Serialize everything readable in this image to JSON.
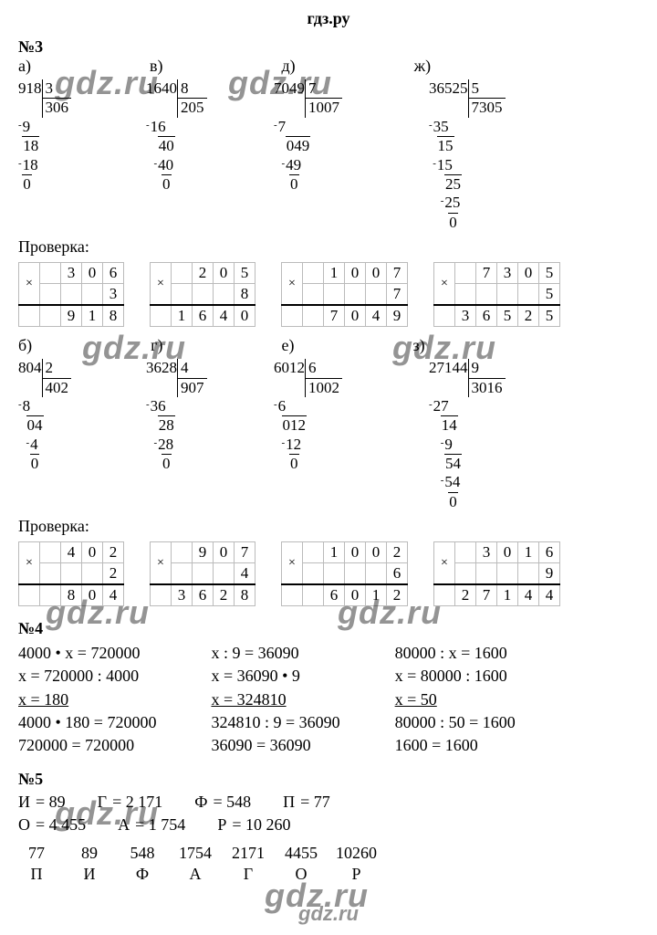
{
  "header": "гдз.ру",
  "watermarks": [
    "gdz.ru",
    "gdz.ru",
    "gdz.ru",
    "gdz.ru",
    "gdz.ru",
    "gdz.ru",
    "gdz.ru",
    "gdz.ru",
    "gdz.ru",
    "gdz.ru"
  ],
  "p3": {
    "title": "№3",
    "label_a": "а)",
    "label_v": "в)",
    "label_d": "д)",
    "label_zh": "ж)",
    "label_b": "б)",
    "label_g": "г)",
    "label_e": "е)",
    "label_z": "з)",
    "proverka": "Проверка:",
    "div_a": {
      "dividend": "918",
      "divisor": "3",
      "quotient": "306",
      "steps": [
        "9",
        "18",
        "18",
        "0"
      ],
      "minus_idx": [
        0,
        2
      ],
      "obar_idx": [
        1,
        3
      ]
    },
    "div_v": {
      "dividend": "1640",
      "divisor": "8",
      "quotient": "205",
      "steps": [
        "16",
        "40",
        "40",
        "0"
      ],
      "indent": [
        "",
        "  ",
        "  ",
        "   "
      ],
      "minus_idx": [
        0,
        2
      ],
      "obar_idx": [
        1,
        3
      ]
    },
    "div_d": {
      "dividend": "7049",
      "divisor": "7",
      "quotient": "1007",
      "steps": [
        "7",
        "049",
        "49",
        "0"
      ],
      "indent": [
        "",
        "  ",
        "  ",
        "   "
      ],
      "minus_idx": [
        0,
        2
      ],
      "obar_idx": [
        1,
        3
      ]
    },
    "div_zh": {
      "dividend": "36525",
      "divisor": "5",
      "quotient": "7305",
      "lines": [
        {
          "t": "35",
          "m": true,
          "i": ""
        },
        {
          "t": "15",
          "m": false,
          "i": " ",
          "ob": true
        },
        {
          "t": "15",
          "m": true,
          "i": " "
        },
        {
          "t": "25",
          "m": false,
          "i": "   ",
          "ob": true
        },
        {
          "t": "25",
          "m": true,
          "i": "   "
        },
        {
          "t": "0",
          "m": false,
          "i": "    ",
          "ob": true
        }
      ]
    },
    "div_b": {
      "dividend": "804",
      "divisor": "2",
      "quotient": "402",
      "lines": [
        {
          "t": "8",
          "m": true,
          "i": ""
        },
        {
          "t": "04",
          "m": false,
          "i": " ",
          "ob": true
        },
        {
          "t": "4",
          "m": true,
          "i": "  "
        },
        {
          "t": "0",
          "m": false,
          "i": "  ",
          "ob": true
        }
      ]
    },
    "div_g": {
      "dividend": "3628",
      "divisor": "4",
      "quotient": "907",
      "lines": [
        {
          "t": "36",
          "m": true,
          "i": ""
        },
        {
          "t": "28",
          "m": false,
          "i": "  ",
          "ob": true
        },
        {
          "t": "28",
          "m": true,
          "i": "  "
        },
        {
          "t": "0",
          "m": false,
          "i": "   ",
          "ob": true
        }
      ]
    },
    "div_e": {
      "dividend": "6012",
      "divisor": "6",
      "quotient": "1002",
      "lines": [
        {
          "t": "6",
          "m": true,
          "i": ""
        },
        {
          "t": "012",
          "m": false,
          "i": " ",
          "ob": true
        },
        {
          "t": "12",
          "m": true,
          "i": "  "
        },
        {
          "t": "0",
          "m": false,
          "i": "   ",
          "ob": true
        }
      ]
    },
    "div_z": {
      "dividend": "27144",
      "divisor": "9",
      "quotient": "3016",
      "lines": [
        {
          "t": "27",
          "m": true,
          "i": ""
        },
        {
          "t": "14",
          "m": false,
          "i": "  ",
          "ob": true
        },
        {
          "t": "9",
          "m": true,
          "i": "   "
        },
        {
          "t": "54",
          "m": false,
          "i": "   ",
          "ob": true
        },
        {
          "t": "54",
          "m": true,
          "i": "   "
        },
        {
          "t": "0",
          "m": false,
          "i": "    ",
          "ob": true
        }
      ]
    },
    "mult_a": {
      "cols": 4,
      "top": [
        "",
        "3",
        "0",
        "6"
      ],
      "mid": [
        "",
        "",
        "",
        "3"
      ],
      "res": [
        "",
        "9",
        "1",
        "8"
      ]
    },
    "mult_v": {
      "cols": 4,
      "top": [
        "",
        "2",
        "0",
        "5"
      ],
      "mid": [
        "",
        "",
        "",
        "8"
      ],
      "res": [
        "1",
        "6",
        "4",
        "0"
      ]
    },
    "mult_d": {
      "cols": 5,
      "top": [
        "",
        "1",
        "0",
        "0",
        "7"
      ],
      "mid": [
        "",
        "",
        "",
        "",
        "7"
      ],
      "res": [
        "",
        "7",
        "0",
        "4",
        "9"
      ]
    },
    "mult_zh": {
      "cols": 5,
      "top": [
        "",
        "7",
        "3",
        "0",
        "5"
      ],
      "mid": [
        "",
        "",
        "",
        "",
        "5"
      ],
      "res": [
        "3",
        "6",
        "5",
        "2",
        "5"
      ]
    },
    "mult_b": {
      "cols": 4,
      "top": [
        "",
        "4",
        "0",
        "2"
      ],
      "mid": [
        "",
        "",
        "",
        "2"
      ],
      "res": [
        "",
        "8",
        "0",
        "4"
      ]
    },
    "mult_g": {
      "cols": 4,
      "top": [
        "",
        "9",
        "0",
        "7"
      ],
      "mid": [
        "",
        "",
        "",
        "4"
      ],
      "res": [
        "3",
        "6",
        "2",
        "8"
      ]
    },
    "mult_e": {
      "cols": 5,
      "top": [
        "",
        "1",
        "0",
        "0",
        "2"
      ],
      "mid": [
        "",
        "",
        "",
        "",
        "6"
      ],
      "res": [
        "",
        "6",
        "0",
        "1",
        "2"
      ]
    },
    "mult_z": {
      "cols": 5,
      "top": [
        "",
        "3",
        "0",
        "1",
        "6"
      ],
      "mid": [
        "",
        "",
        "",
        "",
        "9"
      ],
      "res": [
        "2",
        "7",
        "1",
        "4",
        "4"
      ]
    }
  },
  "p4": {
    "title": "№4",
    "eq1": [
      "4000 • x = 720000",
      "x = 720000 : 4000",
      "x = 180",
      "4000 • 180 = 720000",
      "720000 = 720000"
    ],
    "eq2": [
      "x : 9 = 36090",
      "x = 36090 • 9",
      "x = 324810",
      "324810 : 9 = 36090",
      "36090 = 36090"
    ],
    "eq3": [
      "80000 : x = 1600",
      "x = 80000 : 1600",
      "x = 50",
      "80000 : 50 = 1600",
      "1600 = 1600"
    ]
  },
  "p5": {
    "title": "№5",
    "pairs": [
      [
        "И",
        "= 89"
      ],
      [
        "Г",
        "= 2 171"
      ],
      [
        "Ф",
        "= 548"
      ],
      [
        "П",
        "= 77"
      ],
      [
        "О",
        "= 4 455"
      ],
      [
        "А",
        "= 1 754"
      ],
      [
        "Р",
        "= 10 260"
      ]
    ],
    "table": {
      "nums": [
        "77",
        "89",
        "548",
        "1754",
        "2171",
        "4455",
        "10260"
      ],
      "lets": [
        "П",
        "И",
        "Ф",
        "А",
        "Г",
        "О",
        "Р"
      ]
    }
  },
  "footer": "gdz.ru",
  "colors": {
    "text": "#000000",
    "bg": "#ffffff",
    "grid": "#bbbbbb",
    "wm": "rgba(0,0,0,0.42)"
  }
}
